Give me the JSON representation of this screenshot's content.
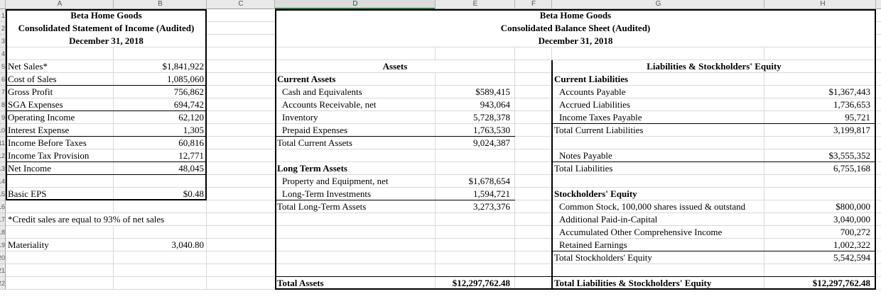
{
  "app": {
    "selected_column": "D",
    "colors": {
      "selection_green": "#217346",
      "header_bg": "#e9e9e9",
      "selected_header_bg": "#dcdcdc"
    }
  },
  "column_headers": [
    "A",
    "B",
    "C",
    "D",
    "E",
    "F",
    "G",
    "H"
  ],
  "row_numbers": [
    "1",
    "2",
    "3",
    "4",
    "5",
    "6",
    "7",
    "8",
    "9",
    "10",
    "11",
    "12",
    "13",
    "14",
    "15",
    "16",
    "17",
    "18",
    "19",
    "20",
    "21",
    "22"
  ],
  "income_statement": {
    "title": "Beta Home Goods",
    "subtitle": "Consolidated Statement of Income (Audited)",
    "date": "December 31, 2018",
    "rows": [
      {
        "row": 5,
        "label": "Net Sales*",
        "value": "$1,841,922"
      },
      {
        "row": 6,
        "label": "Cost of Sales",
        "value": "1,085,060"
      },
      {
        "row": 7,
        "label": "Gross Profit",
        "value": "756,862"
      },
      {
        "row": 8,
        "label": "SGA Expenses",
        "value": "694,742"
      },
      {
        "row": 9,
        "label": "Operating Income",
        "value": "62,120"
      },
      {
        "row": 10,
        "label": "Interest Expense",
        "value": "1,305"
      },
      {
        "row": 11,
        "label": "Income Before Taxes",
        "value": "60,816"
      },
      {
        "row": 12,
        "label": "Income Tax Provision",
        "value": "12,771"
      },
      {
        "row": 13,
        "label": "Net Income",
        "value": "48,045"
      },
      {
        "row": 15,
        "label": "Basic EPS",
        "value": "$0.48"
      },
      {
        "row": 17,
        "label": "*Credit sales are equal to 93% of net sales"
      },
      {
        "row": 19,
        "label": "Materiality",
        "value": "3,040.80"
      }
    ]
  },
  "balance_sheet": {
    "title": "Beta Home Goods",
    "subtitle": "Consolidated Balance Sheet (Audited)",
    "date": "December 31, 2018",
    "assets_header": "Assets",
    "liabilities_header": "Liabilities & Stockholders' Equity",
    "assets_rows": [
      {
        "row": 6,
        "label": "Current Assets",
        "bold": true
      },
      {
        "row": 7,
        "label": "Cash and Equivalents",
        "value": "$589,415",
        "indent": true
      },
      {
        "row": 8,
        "label": "Accounts Receivable, net",
        "value": "943,064",
        "indent": true
      },
      {
        "row": 9,
        "label": "Inventory",
        "value": "5,728,378",
        "indent": true
      },
      {
        "row": 10,
        "label": "Prepaid Expenses",
        "value": "1,763,530",
        "indent": true
      },
      {
        "row": 11,
        "label": "Total Current Assets",
        "value": "9,024,387"
      },
      {
        "row": 13,
        "label": "Long Term Assets",
        "bold": true
      },
      {
        "row": 14,
        "label": "Property and Equipment, net",
        "value": "$1,678,654",
        "indent": true
      },
      {
        "row": 15,
        "label": "Long-Term Investments",
        "value": "1,594,721",
        "indent": true
      },
      {
        "row": 16,
        "label": "Total Long-Term Assets",
        "value": "3,273,376"
      },
      {
        "row": 22,
        "label": "Total Assets",
        "value": "$12,297,762.48",
        "bold": true
      }
    ],
    "liabilities_rows": [
      {
        "row": 6,
        "label": "Current Liabilities",
        "bold": true
      },
      {
        "row": 7,
        "label": "Accounts Payable",
        "value": "$1,367,443",
        "indent": true
      },
      {
        "row": 8,
        "label": "Accrued Liabilities",
        "value": "1,736,653",
        "indent": true
      },
      {
        "row": 9,
        "label": "Income Taxes Payable",
        "value": "95,721",
        "indent": true
      },
      {
        "row": 10,
        "label": "Total Current Liabilities",
        "value": "3,199,817"
      },
      {
        "row": 12,
        "label": "Notes Payable",
        "value": "$3,555,352",
        "indent": true
      },
      {
        "row": 13,
        "label": "Total Liabilities",
        "value": "6,755,168"
      },
      {
        "row": 15,
        "label": "Stockholders' Equity",
        "bold": true
      },
      {
        "row": 16,
        "label": "Common Stock, 100,000 shares issued & outstand",
        "value": "$800,000",
        "indent": true
      },
      {
        "row": 17,
        "label": "Additional Paid-in-Capital",
        "value": "3,040,000",
        "indent": true
      },
      {
        "row": 18,
        "label": "Accumulated Other Comprehensive Income",
        "value": "700,272",
        "indent": true
      },
      {
        "row": 19,
        "label": "Retained Earnings",
        "value": "1,002,322",
        "indent": true
      },
      {
        "row": 20,
        "label": "Total Stockholders' Equity",
        "value": "5,542,594"
      },
      {
        "row": 22,
        "label": "Total Liabilities & Stockholders' Equity",
        "value": "$12,297,762.48",
        "bold": true
      }
    ]
  }
}
